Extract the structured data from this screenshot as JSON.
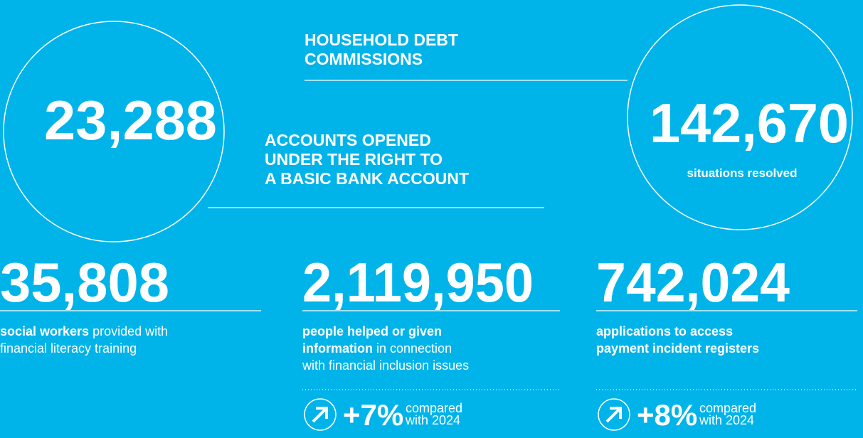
{
  "top_left": {
    "number": "23,288",
    "heading": [
      "ACCOUNTS OPENED",
      "UNDER THE RIGHT TO",
      "A BASIC BANK ACCOUNT"
    ]
  },
  "top_right": {
    "heading": [
      "HOUSEHOLD DEBT",
      "COMMISSIONS"
    ],
    "number": "142,670",
    "caption": "situations resolved"
  },
  "columns": [
    {
      "number": "35,808",
      "lines": [
        [
          {
            "text": "social workers",
            "bold": true
          },
          {
            "text": " provided with"
          }
        ],
        [
          {
            "text": "financial literacy training"
          }
        ]
      ]
    },
    {
      "number": "2,119,950",
      "lines": [
        [
          {
            "text": "people helped or given",
            "bold": true
          }
        ],
        [
          {
            "text": "information",
            "bold": true
          },
          {
            "text": " in connection"
          }
        ],
        [
          {
            "text": "with financial inclusion issues"
          }
        ]
      ],
      "change": {
        "value": "+7%",
        "note": [
          "compared",
          "with 2024"
        ]
      }
    },
    {
      "number": "742,024",
      "lines": [
        [
          {
            "text": "applications to access",
            "bold": true
          }
        ],
        [
          {
            "text": "payment incident registers",
            "bold": true
          }
        ]
      ],
      "change": {
        "value": "+8%",
        "note": [
          "compared",
          "with 2024"
        ]
      }
    }
  ]
}
